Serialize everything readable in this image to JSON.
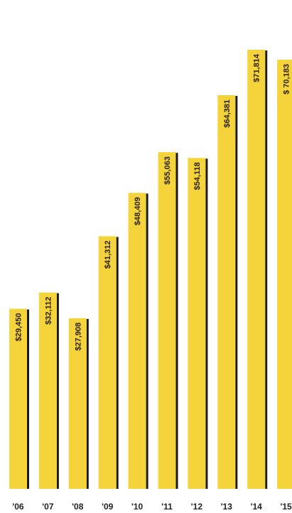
{
  "chart_data": {
    "type": "bar",
    "categories": [
      "'06",
      "'07",
      "'08",
      "'09",
      "'10",
      "'11",
      "'12",
      "'13",
      "'14",
      "'15"
    ],
    "values": [
      29450,
      32112,
      27908,
      41312,
      48409,
      55063,
      54118,
      64381,
      71814,
      70183
    ],
    "value_labels": [
      "$29,450",
      "$32,112",
      "$27,908",
      "$41,312",
      "$48,409",
      "$55,063",
      "$54,118",
      "$64,381",
      "$71,814",
      "$ 70,183"
    ],
    "title": "",
    "xlabel": "",
    "ylabel": "",
    "grid": false,
    "legend": "none",
    "colors": {
      "bar": "#f4d43a",
      "bar_shadow": "#1a1a1a",
      "label_text": "#2a2000",
      "tick_text": "#222222"
    }
  }
}
